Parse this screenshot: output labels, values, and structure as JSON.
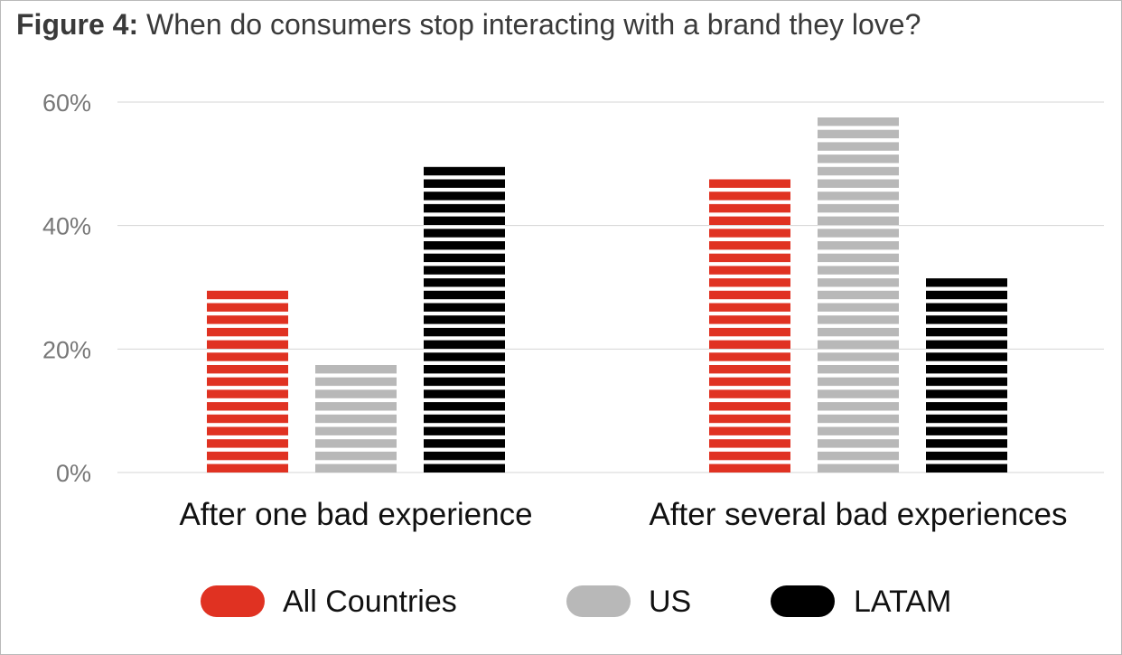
{
  "title": {
    "lead": "Figure 4:",
    "text": " When do consumers stop interacting with a brand they love?"
  },
  "chart_data": {
    "type": "bar",
    "title": "Figure 4: When do consumers stop interacting with a brand they love?",
    "categories": [
      "After one bad experience",
      "After several bad experiences"
    ],
    "series": [
      {
        "name": "All Countries",
        "values": [
          30,
          48
        ],
        "color": "#e03222"
      },
      {
        "name": "US",
        "values": [
          18,
          58
        ],
        "color": "#b8b8b8"
      },
      {
        "name": "LATAM",
        "values": [
          50,
          32
        ],
        "color": "#000000"
      }
    ],
    "ylim": [
      0,
      60
    ],
    "yticks": [
      0,
      20,
      40,
      60
    ],
    "ytick_labels": [
      "0%",
      "20%",
      "40%",
      "60%"
    ],
    "grid": true,
    "legend_position": "bottom",
    "bar_style": "horizontally striped"
  }
}
